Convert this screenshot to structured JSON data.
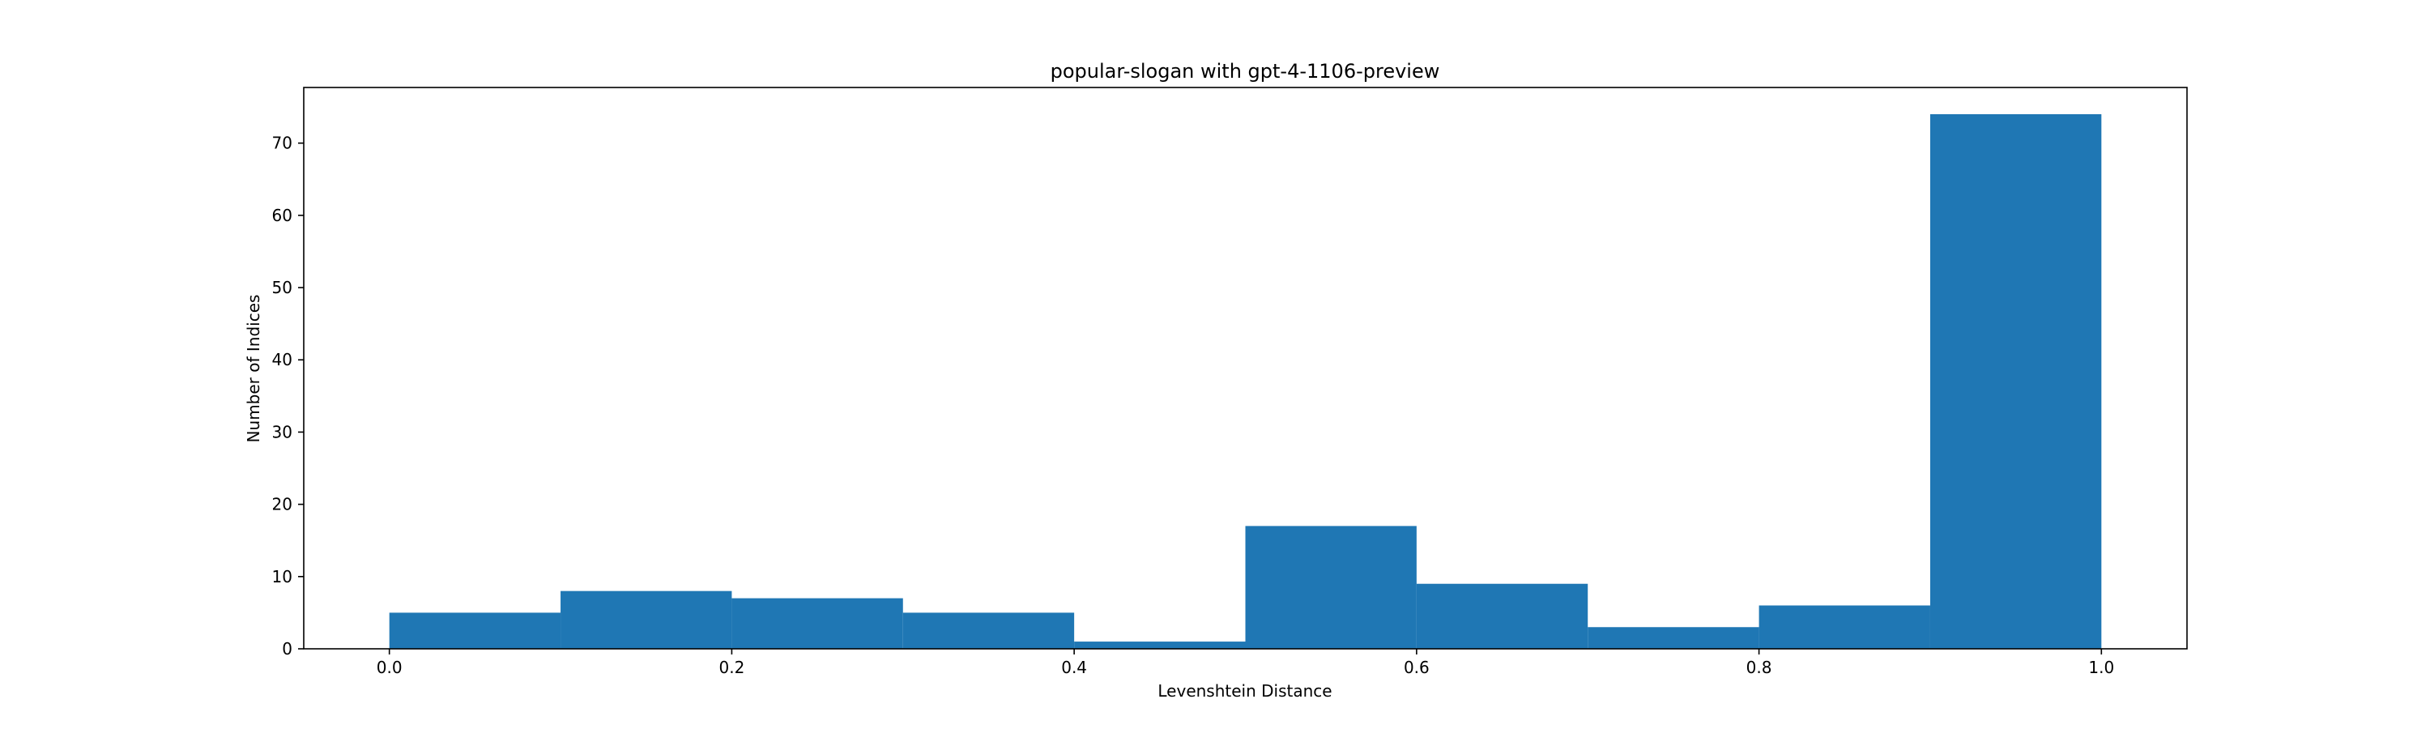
{
  "chart_data": {
    "type": "bar",
    "title": "popular-slogan with gpt-4-1106-preview",
    "xlabel": "Levenshtein Distance",
    "ylabel": "Number of Indices",
    "bin_edges": [
      0.0,
      0.1,
      0.2,
      0.3,
      0.4,
      0.5,
      0.6,
      0.7,
      0.8,
      0.9,
      1.0
    ],
    "values": [
      5,
      8,
      7,
      5,
      1,
      17,
      9,
      3,
      6,
      74
    ],
    "xlim": [
      -0.05,
      1.05
    ],
    "ylim": [
      0,
      77.7
    ],
    "xticks": [
      0.0,
      0.2,
      0.4,
      0.6,
      0.8,
      1.0
    ],
    "xtick_labels": [
      "0.0",
      "0.2",
      "0.4",
      "0.6",
      "0.8",
      "1.0"
    ],
    "yticks": [
      0,
      10,
      20,
      30,
      40,
      50,
      60,
      70
    ],
    "ytick_labels": [
      "0",
      "10",
      "20",
      "30",
      "40",
      "50",
      "60",
      "70"
    ],
    "grid": false,
    "colors": {
      "bar": "#1f77b4",
      "axis": "#000000",
      "background": "#ffffff"
    }
  }
}
